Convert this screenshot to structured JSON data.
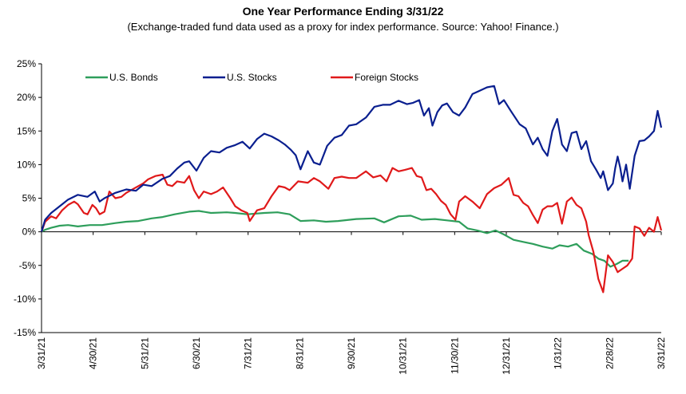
{
  "chart_data": {
    "type": "line",
    "title": "One Year Performance Ending 3/31/22",
    "subtitle": "(Exchange-traded fund data used as a proxy for index performance. Source: Yahoo! Finance.)",
    "xlabel": "",
    "ylabel": "",
    "ylim": [
      -15,
      25
    ],
    "yticks": [
      25,
      20,
      15,
      10,
      5,
      0,
      -5,
      -10,
      -15
    ],
    "ytick_labels": [
      "25%",
      "20%",
      "15%",
      "10%",
      "5%",
      "0%",
      "-5%",
      "-10%",
      "-15%"
    ],
    "xticks": [
      "3/31/21",
      "4/30/21",
      "5/31/21",
      "6/30/21",
      "7/31/21",
      "8/31/21",
      "9/30/21",
      "10/31/21",
      "11/30/21",
      "12/31/21",
      "1/31/22",
      "2/28/22",
      "3/31/22"
    ],
    "grid": false,
    "legend_position": "top-left",
    "series": [
      {
        "name": "U.S. Bonds",
        "color": "#2e9e5b",
        "points": [
          [
            0,
            0
          ],
          [
            3,
            0.3
          ],
          [
            8,
            0.6
          ],
          [
            15,
            0.9
          ],
          [
            22,
            1.0
          ],
          [
            30,
            0.8
          ],
          [
            40,
            1.0
          ],
          [
            50,
            1.0
          ],
          [
            61,
            1.3
          ],
          [
            70,
            1.5
          ],
          [
            80,
            1.6
          ],
          [
            91,
            2.0
          ],
          [
            100,
            2.2
          ],
          [
            110,
            2.6
          ],
          [
            122,
            3.0
          ],
          [
            130,
            3.1
          ],
          [
            140,
            2.8
          ],
          [
            153,
            2.9
          ],
          [
            160,
            2.8
          ],
          [
            170,
            2.6
          ],
          [
            184,
            2.8
          ],
          [
            195,
            2.9
          ],
          [
            205,
            2.6
          ],
          [
            214,
            1.6
          ],
          [
            225,
            1.7
          ],
          [
            235,
            1.5
          ],
          [
            245,
            1.6
          ],
          [
            260,
            1.9
          ],
          [
            275,
            2.0
          ],
          [
            283,
            1.4
          ],
          [
            295,
            2.3
          ],
          [
            305,
            2.4
          ],
          [
            314,
            1.8
          ],
          [
            325,
            1.9
          ],
          [
            335,
            1.7
          ],
          [
            345,
            1.5
          ],
          [
            352,
            0.5
          ],
          [
            360,
            0.2
          ],
          [
            368,
            -0.2
          ],
          [
            375,
            0.2
          ],
          [
            382,
            -0.4
          ],
          [
            390,
            -1.2
          ],
          [
            398,
            -1.5
          ],
          [
            406,
            -1.8
          ],
          [
            414,
            -2.2
          ],
          [
            422,
            -2.5
          ],
          [
            428,
            -2.0
          ],
          [
            435,
            -2.2
          ],
          [
            442,
            -1.8
          ],
          [
            448,
            -2.8
          ],
          [
            455,
            -3.3
          ],
          [
            460,
            -4.0
          ],
          [
            465,
            -4.3
          ],
          [
            470,
            -5.2
          ],
          [
            475,
            -4.8
          ],
          [
            480,
            -4.3
          ],
          [
            485,
            -4.3
          ]
        ]
      },
      {
        "name": "U.S. Stocks",
        "color": "#0a1f8f",
        "points": [
          [
            0,
            0
          ],
          [
            3,
            1.8
          ],
          [
            8,
            2.8
          ],
          [
            15,
            3.8
          ],
          [
            22,
            4.8
          ],
          [
            30,
            5.5
          ],
          [
            38,
            5.2
          ],
          [
            44,
            6.0
          ],
          [
            48,
            4.5
          ],
          [
            52,
            5.0
          ],
          [
            61,
            5.8
          ],
          [
            70,
            6.3
          ],
          [
            78,
            6.1
          ],
          [
            84,
            7.0
          ],
          [
            91,
            6.8
          ],
          [
            100,
            7.9
          ],
          [
            106,
            8.3
          ],
          [
            112,
            9.4
          ],
          [
            118,
            10.3
          ],
          [
            122,
            10.5
          ],
          [
            128,
            9.1
          ],
          [
            134,
            11.0
          ],
          [
            140,
            12.0
          ],
          [
            147,
            11.8
          ],
          [
            153,
            12.5
          ],
          [
            160,
            12.9
          ],
          [
            166,
            13.4
          ],
          [
            172,
            12.4
          ],
          [
            178,
            13.8
          ],
          [
            184,
            14.6
          ],
          [
            190,
            14.2
          ],
          [
            196,
            13.6
          ],
          [
            201,
            13.0
          ],
          [
            206,
            12.2
          ],
          [
            210,
            11.4
          ],
          [
            214,
            9.3
          ],
          [
            220,
            12.0
          ],
          [
            225,
            10.3
          ],
          [
            230,
            10.0
          ],
          [
            236,
            12.8
          ],
          [
            242,
            14.0
          ],
          [
            248,
            14.4
          ],
          [
            254,
            15.8
          ],
          [
            260,
            16.0
          ],
          [
            268,
            17.0
          ],
          [
            275,
            18.6
          ],
          [
            282,
            18.9
          ],
          [
            288,
            18.9
          ],
          [
            295,
            19.5
          ],
          [
            302,
            19.0
          ],
          [
            307,
            19.2
          ],
          [
            312,
            19.6
          ],
          [
            316,
            17.3
          ],
          [
            320,
            18.4
          ],
          [
            323,
            15.8
          ],
          [
            327,
            17.8
          ],
          [
            331,
            18.8
          ],
          [
            335,
            19.1
          ],
          [
            340,
            17.8
          ],
          [
            345,
            17.3
          ],
          [
            350,
            18.5
          ],
          [
            356,
            20.5
          ],
          [
            362,
            21.0
          ],
          [
            368,
            21.5
          ],
          [
            374,
            21.7
          ],
          [
            378,
            19.0
          ],
          [
            382,
            19.6
          ],
          [
            388,
            17.9
          ],
          [
            395,
            16.0
          ],
          [
            400,
            15.4
          ],
          [
            406,
            13.0
          ],
          [
            410,
            14.0
          ],
          [
            414,
            12.3
          ],
          [
            418,
            11.3
          ],
          [
            422,
            15.0
          ],
          [
            426,
            16.8
          ],
          [
            430,
            13.0
          ],
          [
            434,
            12.0
          ],
          [
            438,
            14.7
          ],
          [
            442,
            14.9
          ],
          [
            446,
            12.3
          ],
          [
            450,
            13.5
          ],
          [
            454,
            10.5
          ],
          [
            458,
            9.3
          ],
          [
            462,
            8.0
          ],
          [
            464,
            9.0
          ],
          [
            468,
            6.2
          ],
          [
            472,
            7.2
          ],
          [
            474,
            9.5
          ],
          [
            476,
            11.2
          ],
          [
            478,
            9.6
          ],
          [
            480,
            7.5
          ],
          [
            483,
            10.0
          ],
          [
            486,
            6.4
          ],
          [
            490,
            11.3
          ],
          [
            494,
            13.5
          ],
          [
            498,
            13.6
          ],
          [
            502,
            14.2
          ],
          [
            506,
            15.0
          ],
          [
            509,
            18.0
          ],
          [
            512,
            15.5
          ]
        ]
      },
      {
        "name": "Foreign Stocks",
        "color": "#e0191a",
        "points": [
          [
            0,
            0
          ],
          [
            3,
            1.5
          ],
          [
            8,
            2.3
          ],
          [
            12,
            2.0
          ],
          [
            17,
            3.2
          ],
          [
            22,
            4.0
          ],
          [
            27,
            4.5
          ],
          [
            30,
            4.1
          ],
          [
            35,
            2.8
          ],
          [
            38,
            2.6
          ],
          [
            42,
            4.0
          ],
          [
            45,
            3.5
          ],
          [
            48,
            2.6
          ],
          [
            52,
            3.0
          ],
          [
            56,
            6.0
          ],
          [
            61,
            5.0
          ],
          [
            66,
            5.2
          ],
          [
            70,
            5.8
          ],
          [
            76,
            6.4
          ],
          [
            84,
            7.2
          ],
          [
            88,
            7.8
          ],
          [
            94,
            8.3
          ],
          [
            100,
            8.5
          ],
          [
            104,
            7.0
          ],
          [
            108,
            6.8
          ],
          [
            112,
            7.5
          ],
          [
            118,
            7.3
          ],
          [
            122,
            8.3
          ],
          [
            126,
            6.2
          ],
          [
            130,
            5.0
          ],
          [
            134,
            6.0
          ],
          [
            140,
            5.6
          ],
          [
            145,
            6.0
          ],
          [
            150,
            6.6
          ],
          [
            156,
            5.0
          ],
          [
            160,
            3.8
          ],
          [
            165,
            3.2
          ],
          [
            170,
            2.8
          ],
          [
            172,
            1.6
          ],
          [
            178,
            3.2
          ],
          [
            184,
            3.5
          ],
          [
            190,
            5.3
          ],
          [
            196,
            6.8
          ],
          [
            201,
            6.6
          ],
          [
            205,
            6.2
          ],
          [
            212,
            7.5
          ],
          [
            220,
            7.3
          ],
          [
            225,
            8.0
          ],
          [
            230,
            7.5
          ],
          [
            237,
            6.4
          ],
          [
            242,
            8.0
          ],
          [
            248,
            8.2
          ],
          [
            254,
            8.0
          ],
          [
            260,
            8.0
          ],
          [
            264,
            8.5
          ],
          [
            268,
            9.0
          ],
          [
            274,
            8.1
          ],
          [
            280,
            8.4
          ],
          [
            285,
            7.5
          ],
          [
            290,
            9.5
          ],
          [
            295,
            9.0
          ],
          [
            300,
            9.2
          ],
          [
            306,
            9.5
          ],
          [
            310,
            8.3
          ],
          [
            314,
            8.1
          ],
          [
            318,
            6.2
          ],
          [
            322,
            6.4
          ],
          [
            326,
            5.6
          ],
          [
            330,
            4.6
          ],
          [
            334,
            4.0
          ],
          [
            338,
            2.6
          ],
          [
            342,
            1.8
          ],
          [
            345,
            4.5
          ],
          [
            350,
            5.3
          ],
          [
            356,
            4.5
          ],
          [
            362,
            3.5
          ],
          [
            368,
            5.6
          ],
          [
            374,
            6.5
          ],
          [
            380,
            7.0
          ],
          [
            386,
            8.0
          ],
          [
            390,
            5.5
          ],
          [
            394,
            5.3
          ],
          [
            398,
            4.3
          ],
          [
            402,
            3.8
          ],
          [
            406,
            2.5
          ],
          [
            410,
            1.3
          ],
          [
            414,
            3.3
          ],
          [
            418,
            3.8
          ],
          [
            422,
            3.8
          ],
          [
            426,
            4.3
          ],
          [
            430,
            1.2
          ],
          [
            434,
            4.5
          ],
          [
            438,
            5.1
          ],
          [
            442,
            4.0
          ],
          [
            446,
            3.5
          ],
          [
            450,
            1.5
          ],
          [
            452,
            -0.5
          ],
          [
            456,
            -3.0
          ],
          [
            460,
            -7.0
          ],
          [
            464,
            -9.0
          ],
          [
            468,
            -3.5
          ],
          [
            472,
            -4.5
          ],
          [
            476,
            -6.0
          ],
          [
            480,
            -5.5
          ],
          [
            484,
            -5.0
          ],
          [
            488,
            -4.0
          ],
          [
            490,
            0.8
          ],
          [
            494,
            0.5
          ],
          [
            498,
            -0.6
          ],
          [
            502,
            0.6
          ],
          [
            506,
            0.0
          ],
          [
            509,
            2.2
          ],
          [
            512,
            0.2
          ]
        ]
      }
    ]
  }
}
